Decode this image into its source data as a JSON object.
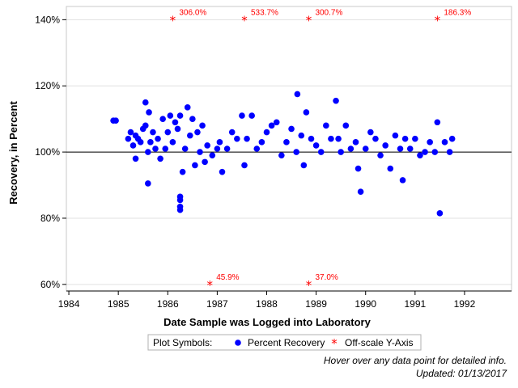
{
  "chart_data": {
    "type": "scatter",
    "xlabel": "Date Sample was Logged into Laboratory",
    "ylabel": "Recovery, in Percent",
    "xlim": [
      1983.95,
      1992.95
    ],
    "ylim": [
      58,
      144
    ],
    "x_ticks": [
      1984,
      1985,
      1986,
      1987,
      1988,
      1989,
      1990,
      1991,
      1992
    ],
    "y_ticks": [
      60,
      80,
      100,
      120,
      140
    ],
    "y_tick_labels": [
      "60%",
      "80%",
      "100%",
      "120%",
      "140%"
    ],
    "reference_line_y": 100,
    "grid": "horizontal",
    "series": [
      {
        "name": "Percent Recovery",
        "color": "#0000ff",
        "marker": "circle",
        "x": [
          1984.9,
          1984.95,
          1985.2,
          1985.25,
          1985.3,
          1985.35,
          1985.35,
          1985.4,
          1985.45,
          1985.5,
          1985.55,
          1985.55,
          1985.6,
          1985.6,
          1985.62,
          1985.65,
          1985.7,
          1985.75,
          1985.8,
          1985.85,
          1985.9,
          1985.95,
          1986.0,
          1986.05,
          1986.1,
          1986.15,
          1986.2,
          1986.25,
          1986.3,
          1986.35,
          1986.4,
          1986.45,
          1986.5,
          1986.55,
          1986.6,
          1986.65,
          1986.7,
          1986.75,
          1986.8,
          1986.9,
          1987.0,
          1987.05,
          1987.1,
          1987.2,
          1987.3,
          1987.4,
          1987.5,
          1987.55,
          1987.6,
          1987.7,
          1987.8,
          1987.9,
          1988.0,
          1988.1,
          1988.2,
          1988.3,
          1988.4,
          1988.5,
          1988.6,
          1988.62,
          1988.7,
          1988.75,
          1988.8,
          1988.9,
          1989.0,
          1989.1,
          1989.2,
          1989.3,
          1989.4,
          1989.45,
          1989.5,
          1989.6,
          1989.7,
          1989.8,
          1989.85,
          1989.9,
          1990.0,
          1990.1,
          1990.2,
          1990.3,
          1990.4,
          1990.5,
          1990.6,
          1990.7,
          1990.75,
          1990.8,
          1990.9,
          1991.0,
          1991.1,
          1991.2,
          1991.3,
          1991.4,
          1991.45,
          1991.5,
          1991.6,
          1991.7,
          1991.75,
          1986.25,
          1986.25,
          1986.25,
          1986.25
        ],
        "y": [
          109.5,
          109.5,
          104,
          106,
          102,
          105,
          98,
          104,
          103,
          107,
          115,
          108,
          100,
          90.5,
          112,
          103,
          106,
          101,
          104,
          98,
          110,
          101,
          106,
          111,
          103,
          109,
          107,
          111,
          94,
          101,
          113.5,
          105,
          110,
          96,
          106,
          100,
          108,
          97,
          102,
          99,
          101,
          103,
          94,
          101,
          106,
          104,
          111,
          96,
          104,
          111,
          101,
          103,
          106,
          108,
          109,
          99,
          103,
          107,
          100,
          117.5,
          105,
          96,
          112,
          104,
          102,
          100,
          108,
          104,
          115.5,
          104,
          100,
          108,
          101,
          103,
          95,
          88,
          101,
          106,
          104,
          99,
          102,
          95,
          105,
          101,
          91.5,
          104,
          101,
          104,
          99,
          100,
          103,
          100,
          109,
          81.5,
          103,
          100,
          104,
          82.5,
          83.5,
          85.5,
          86.5
        ]
      },
      {
        "name": "Off-scale Y-Axis",
        "color": "#ff0000",
        "marker": "asterisk",
        "x": [
          1986.1,
          1987.55,
          1988.85,
          1991.45,
          1986.85,
          1988.85
        ],
        "y": [
          140,
          140,
          140,
          140,
          60,
          60
        ],
        "labels": [
          "306.0%",
          "533.7%",
          "300.7%",
          "186.3%",
          "45.9%",
          "37.0%"
        ]
      }
    ],
    "legend": {
      "title": "Plot Symbols:",
      "items": [
        "Percent Recovery",
        "Off-scale Y-Axis"
      ],
      "placement": "bottom"
    }
  },
  "footnotes": {
    "hover_hint": "Hover over any data point for detailed info.",
    "updated": "Updated: 01/13/2017"
  }
}
